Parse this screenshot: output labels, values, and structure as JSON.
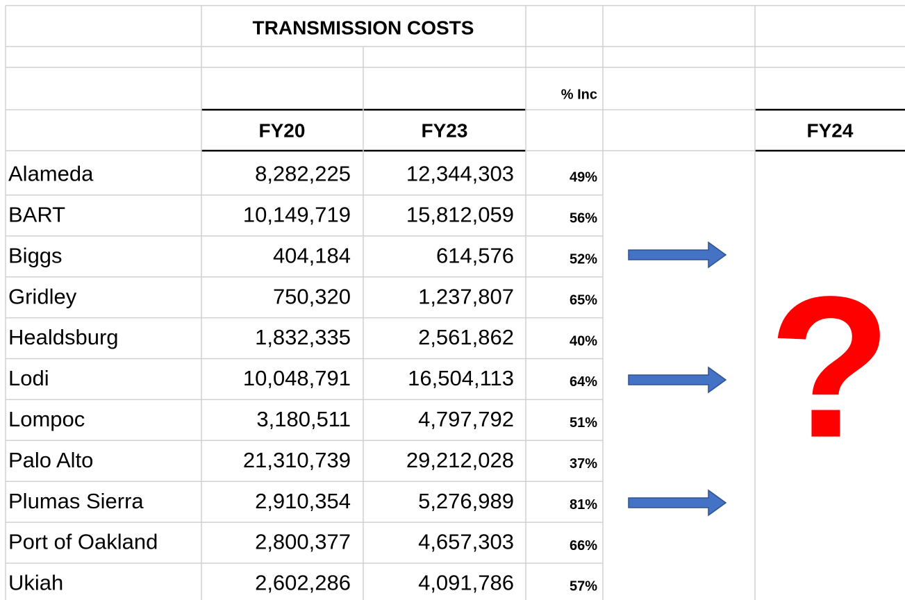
{
  "header": {
    "title": "TRANSMISSION COSTS",
    "pct_label": "% Inc",
    "columns": [
      "FY20",
      "FY23"
    ],
    "fy24": "FY24"
  },
  "table": {
    "rows": [
      [
        "Alameda",
        "8,282,225",
        "12,344,303",
        "49%"
      ],
      [
        "BART",
        "10,149,719",
        "15,812,059",
        "56%"
      ],
      [
        "Biggs",
        "404,184",
        "614,576",
        "52%"
      ],
      [
        "Gridley",
        "750,320",
        "1,237,807",
        "65%"
      ],
      [
        "Healdsburg",
        "1,832,335",
        "2,561,862",
        "40%"
      ],
      [
        "Lodi",
        "10,048,791",
        "16,504,113",
        "64%"
      ],
      [
        "Lompoc",
        "3,180,511",
        "4,797,792",
        "51%"
      ],
      [
        "Palo Alto",
        "21,310,739",
        "29,212,028",
        "37%"
      ],
      [
        "Plumas Sierra",
        "2,910,354",
        "5,276,989",
        "81%"
      ],
      [
        "Port of Oakland",
        "2,800,377",
        "4,657,303",
        "66%"
      ],
      [
        "Ukiah",
        "2,602,286",
        "4,091,786",
        "57%"
      ]
    ]
  },
  "annotation": "?"
}
